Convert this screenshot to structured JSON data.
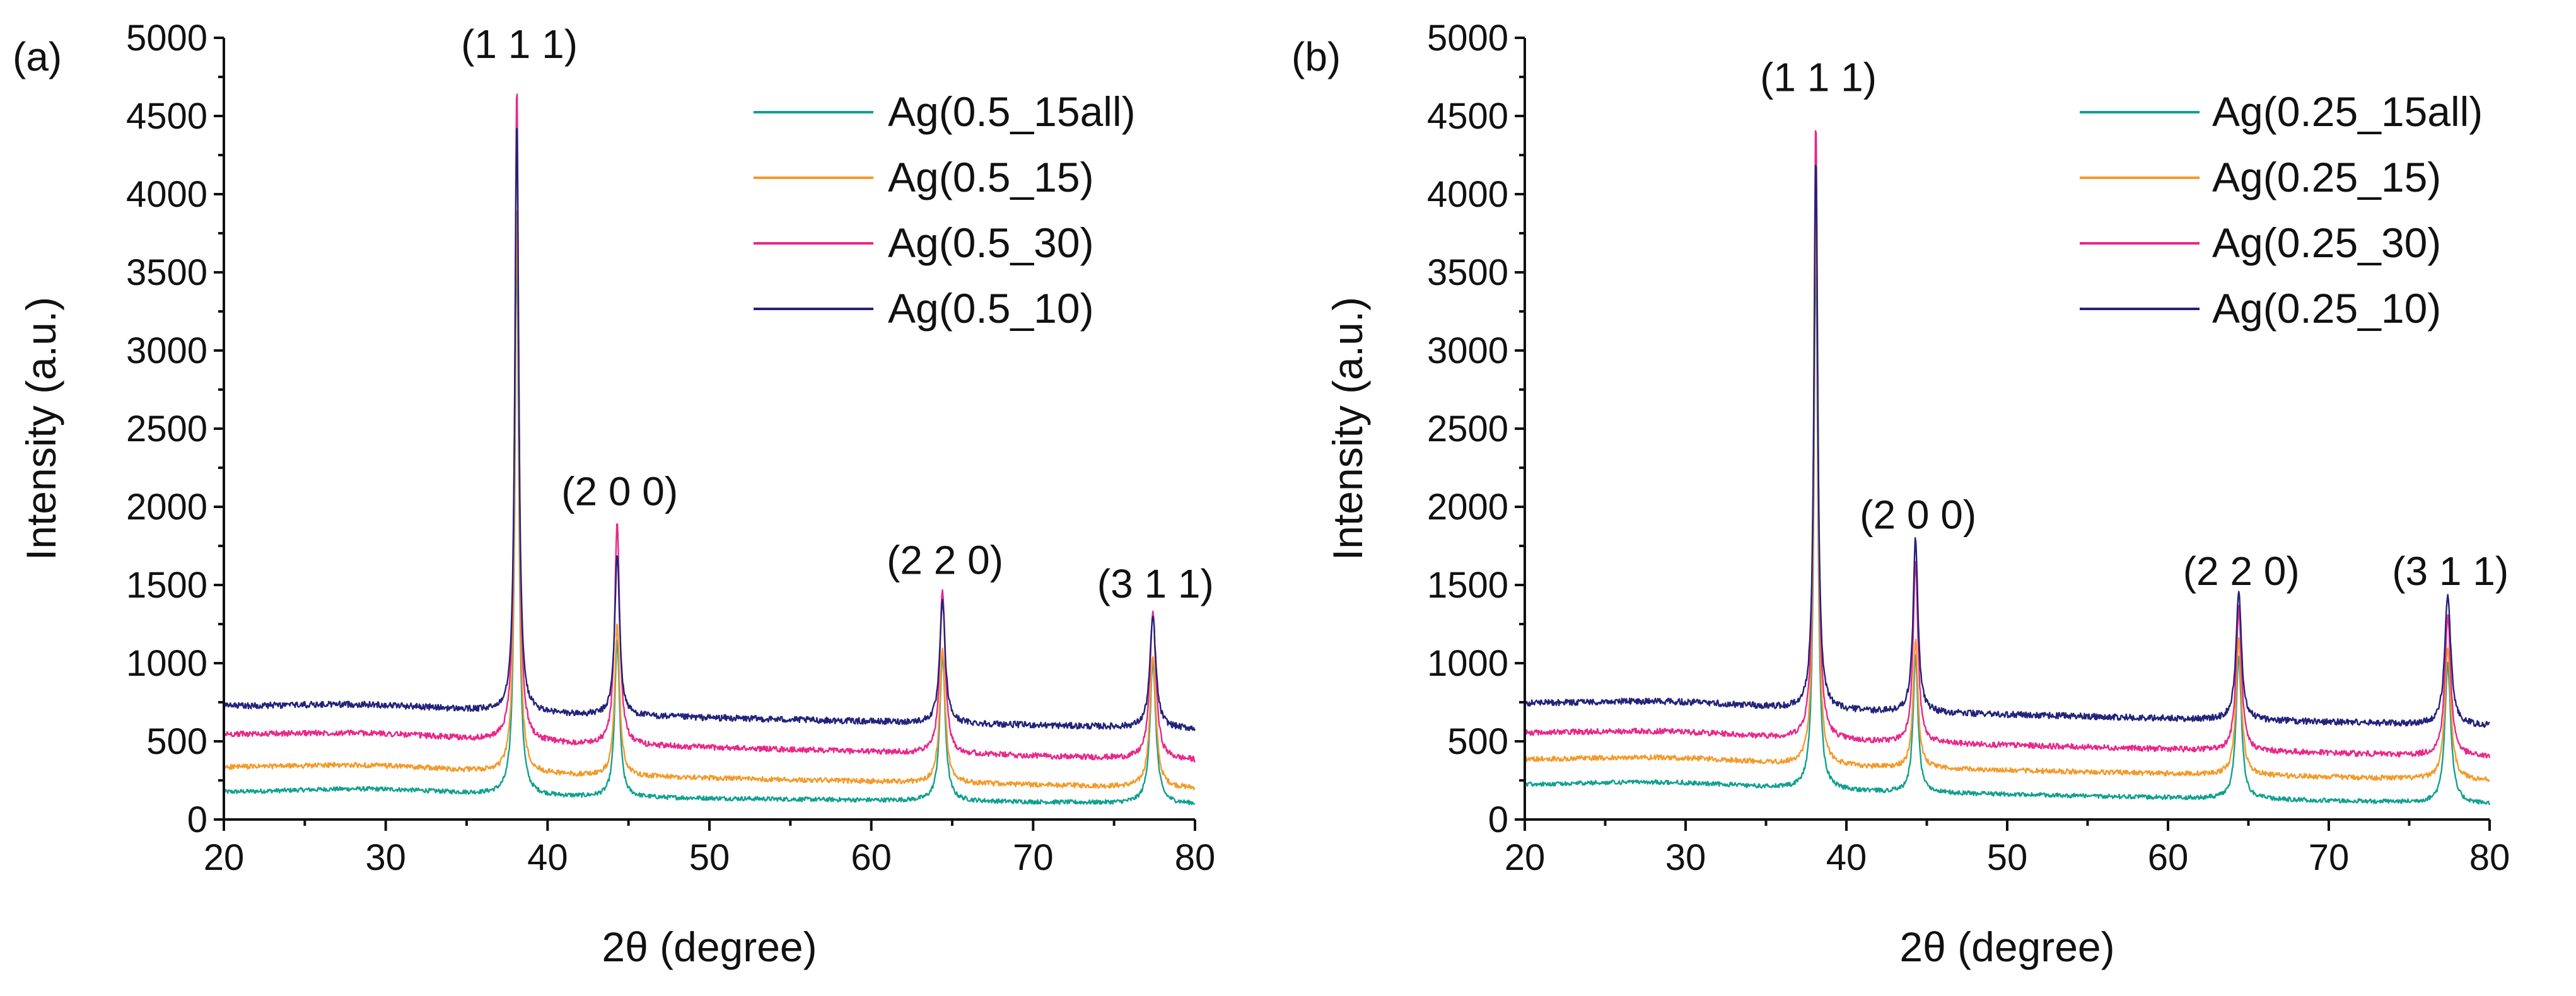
{
  "chart_data": [
    {
      "type": "line",
      "panel_label": "(a)",
      "xlabel": "2θ (degree)",
      "ylabel": "Intensity (a.u.)",
      "xlim": [
        20,
        80
      ],
      "ylim": [
        0,
        5000
      ],
      "xticks": [
        20,
        30,
        40,
        50,
        60,
        70,
        80
      ],
      "yticks": [
        0,
        500,
        1000,
        1500,
        2000,
        2500,
        3000,
        3500,
        4000,
        4500,
        5000
      ],
      "legend_position": "top-right",
      "peaks": [
        {
          "label": "(1 1 1)",
          "x": 38.1,
          "label_y": 4870
        },
        {
          "label": "(2 0 0)",
          "x": 44.3,
          "label_y": 2010
        },
        {
          "label": "(2 2 0)",
          "x": 64.4,
          "label_y": 1570
        },
        {
          "label": "(3 1 1)",
          "x": 77.4,
          "label_y": 1420
        }
      ],
      "series": [
        {
          "name": "Ag(0.5_15all)",
          "color": "#12a090",
          "baseline": [
            170,
            100
          ],
          "peak_heights": [
            3750,
            1150,
            1050,
            1000
          ],
          "noise": 14
        },
        {
          "name": "Ag(0.5_15)",
          "color": "#f39a2b",
          "baseline": [
            330,
            200
          ],
          "peak_heights": [
            3950,
            1250,
            1100,
            1050
          ],
          "noise": 16
        },
        {
          "name": "Ag(0.5_30)",
          "color": "#e8288a",
          "baseline": [
            540,
            380
          ],
          "peak_heights": [
            4700,
            1920,
            1470,
            1330
          ],
          "noise": 18
        },
        {
          "name": "Ag(0.5_10)",
          "color": "#22237a",
          "baseline": [
            720,
            580
          ],
          "peak_heights": [
            4500,
            1700,
            1400,
            1300
          ],
          "noise": 20
        }
      ]
    },
    {
      "type": "line",
      "panel_label": "(b)",
      "xlabel": "2θ (degree)",
      "ylabel": "Intensity (a.u.)",
      "xlim": [
        20,
        80
      ],
      "ylim": [
        0,
        5000
      ],
      "xticks": [
        20,
        30,
        40,
        50,
        60,
        70,
        80
      ],
      "yticks": [
        0,
        500,
        1000,
        1500,
        2000,
        2500,
        3000,
        3500,
        4000,
        4500,
        5000
      ],
      "legend_position": "top-right",
      "peaks": [
        {
          "label": "(1 1 1)",
          "x": 38.1,
          "label_y": 4660
        },
        {
          "label": "(2 0 0)",
          "x": 44.3,
          "label_y": 1860
        },
        {
          "label": "(2 2 0)",
          "x": 64.4,
          "label_y": 1500
        },
        {
          "label": "(3 1 1)",
          "x": 77.4,
          "label_y": 1500
        }
      ],
      "series": [
        {
          "name": "Ag(0.25_15all)",
          "color": "#12a090",
          "baseline": [
            220,
            100
          ],
          "peak_heights": [
            3700,
            1050,
            1050,
            1000
          ],
          "noise": 14
        },
        {
          "name": "Ag(0.25_15)",
          "color": "#f39a2b",
          "baseline": [
            380,
            250
          ],
          "peak_heights": [
            3900,
            1150,
            1150,
            1100
          ],
          "noise": 16
        },
        {
          "name": "Ag(0.25_30)",
          "color": "#e8288a",
          "baseline": [
            550,
            400
          ],
          "peak_heights": [
            4480,
            1650,
            1350,
            1300
          ],
          "noise": 18
        },
        {
          "name": "Ag(0.25_10)",
          "color": "#22237a",
          "baseline": [
            740,
            600
          ],
          "peak_heights": [
            4250,
            1800,
            1450,
            1450
          ],
          "noise": 20
        }
      ]
    }
  ]
}
